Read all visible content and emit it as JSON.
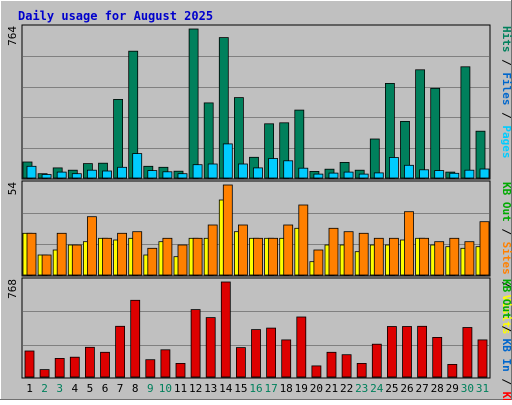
{
  "chart_data": {
    "type": "bar",
    "title": "Daily usage for August 2025",
    "categories": [
      "1",
      "2",
      "3",
      "4",
      "5",
      "6",
      "7",
      "8",
      "9",
      "10",
      "11",
      "12",
      "13",
      "14",
      "15",
      "16",
      "17",
      "18",
      "19",
      "20",
      "21",
      "22",
      "23",
      "24",
      "25",
      "26",
      "27",
      "28",
      "29",
      "30",
      "31"
    ],
    "weekend_days": [
      "2",
      "3",
      "9",
      "10",
      "16",
      "17",
      "23",
      "24",
      "30",
      "31"
    ],
    "panels": [
      {
        "id": "hits",
        "ymax": 764,
        "ymax_label": "764",
        "legend": [
          {
            "label": "Pages",
            "color": "#00ccff"
          },
          {
            "label": "Files",
            "color": "#0066cc"
          },
          {
            "label": "Hits",
            "color": "#00805c"
          }
        ],
        "series": [
          {
            "name": "Hits",
            "color": "#00805c",
            "values": [
              82,
              22,
              52,
              40,
              74,
              76,
              403,
              650,
              60,
              55,
              35,
              764,
              385,
              720,
              412,
              106,
              278,
              283,
              348,
              34,
              45,
              80,
              40,
              200,
              485,
              290,
              555,
              460,
              30,
              570,
              240
            ]
          },
          {
            "name": "Pages",
            "color": "#00ccff",
            "values": [
              60,
              18,
              30,
              22,
              40,
              36,
              55,
              125,
              38,
              32,
              22,
              68,
              72,
              175,
              72,
              52,
              100,
              88,
              50,
              20,
              25,
              30,
              20,
              26,
              105,
              65,
              42,
              38,
              24,
              40,
              46
            ]
          }
        ]
      },
      {
        "id": "sites",
        "ymax": 54,
        "ymax_label": "54",
        "legend": [
          {
            "label": "Visits",
            "color": "#ffff00"
          },
          {
            "label": "Sites",
            "color": "#ff8000"
          },
          {
            "label": "KB Out",
            "color": "#00aa00"
          }
        ],
        "series": [
          {
            "name": "Visits",
            "color": "#ffff00",
            "values": [
              25,
              12,
              15,
              18,
              20,
              22,
              21,
              22,
              12,
              20,
              11,
              22,
              22,
              45,
              26,
              22,
              22,
              22,
              28,
              8,
              18,
              18,
              14,
              18,
              18,
              21,
              22,
              18,
              17,
              16,
              17
            ]
          },
          {
            "name": "Sites",
            "color": "#ff8000",
            "values": [
              25,
              12,
              25,
              18,
              35,
              22,
              25,
              26,
              16,
              22,
              18,
              22,
              30,
              54,
              30,
              22,
              22,
              30,
              42,
              15,
              28,
              26,
              25,
              22,
              22,
              38,
              22,
              20,
              22,
              20,
              32
            ]
          }
        ]
      },
      {
        "id": "kbytes",
        "ymax": 768,
        "ymax_label": "768",
        "legend": [
          {
            "label": "KB F",
            "color": "#ff0000"
          },
          {
            "label": "KB In",
            "color": "#0066cc"
          },
          {
            "label": "KB Out",
            "color": "#00aa00"
          }
        ],
        "series": [
          {
            "name": "KB F",
            "color": "#dd0000",
            "values": [
              210,
              60,
              150,
              160,
              240,
              200,
              410,
              620,
              140,
              220,
              110,
              545,
              480,
              768,
              238,
              383,
              395,
              300,
              485,
              90,
              200,
              180,
              110,
              265,
              408,
              408,
              410,
              320,
              102,
              400,
              300
            ]
          }
        ]
      }
    ]
  }
}
